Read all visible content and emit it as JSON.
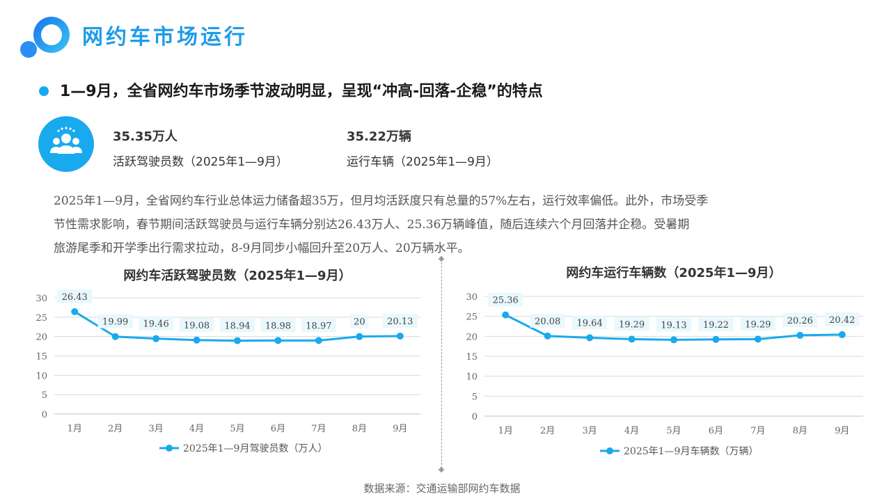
{
  "header": {
    "title": "网约车市场运行"
  },
  "headline": "1—9月，全省网约车市场季节波动明显，呈现“冲高-回落-企稳”的特点",
  "stats": [
    {
      "value": "35.35万人",
      "label": "活跃驾驶员数（2025年1—9月）"
    },
    {
      "value": "35.22万辆",
      "label": "运行车辆（2025年1—9月）"
    }
  ],
  "paragraph": [
    "2025年1—9月，全省网约车行业总体运力储备超35万，但月均活跃度只有总量的57%左右，运行效率偏低。此外，市场受季",
    "节性需求影响，春节期间活跃驾驶员与运行车辆分别达26.43万人、25.36万辆峰值，随后连续六个月回落并企稳。受暑期",
    "旅游尾季和开学季出行需求拉动，8-9月同步小幅回升至20万人、20万辆水平。"
  ],
  "source": "数据来源：交通运输部网约车数据",
  "colors": {
    "accent": "#1e9be8",
    "series": "#19a9ef",
    "label_bg": "#e9f8fd",
    "grid": "#d9d9d9"
  },
  "icons": {
    "logo": "brand-circle-logo",
    "people": "people-group-icon",
    "bullet": "bullet-dot"
  },
  "chart_data": [
    {
      "type": "line",
      "title": "网约车活跃驾驶员数（2025年1—9月）",
      "categories": [
        "1月",
        "2月",
        "3月",
        "4月",
        "5月",
        "6月",
        "7月",
        "8月",
        "9月"
      ],
      "series": [
        {
          "name": "2025年1—9月驾驶员数（万人）",
          "values": [
            26.43,
            19.99,
            19.46,
            19.08,
            18.94,
            18.98,
            18.97,
            20,
            20.13
          ]
        }
      ],
      "value_labels": [
        "26.43",
        "19.99",
        "19.46",
        "19.08",
        "18.94",
        "18.98",
        "18.97",
        "20",
        "20.13"
      ],
      "yticks": [
        "0",
        "5",
        "10",
        "15",
        "20",
        "25",
        "30"
      ],
      "ylim": [
        0,
        30
      ],
      "grid": true,
      "legend": "bottom"
    },
    {
      "type": "line",
      "title": "网约车运行车辆数（2025年1—9月）",
      "categories": [
        "1月",
        "2月",
        "3月",
        "4月",
        "5月",
        "6月",
        "7月",
        "8月",
        "9月"
      ],
      "series": [
        {
          "name": "2025年1—9月车辆数（万辆）",
          "values": [
            25.36,
            20.08,
            19.64,
            19.29,
            19.13,
            19.22,
            19.29,
            20.26,
            20.42
          ]
        }
      ],
      "value_labels": [
        "25.36",
        "20.08",
        "19.64",
        "19.29",
        "19.13",
        "19.22",
        "19.29",
        "20.26",
        "20.42"
      ],
      "yticks": [
        "0",
        "5",
        "10",
        "15",
        "20",
        "25",
        "30"
      ],
      "ylim": [
        0,
        30
      ],
      "grid": true,
      "legend": "bottom"
    }
  ]
}
